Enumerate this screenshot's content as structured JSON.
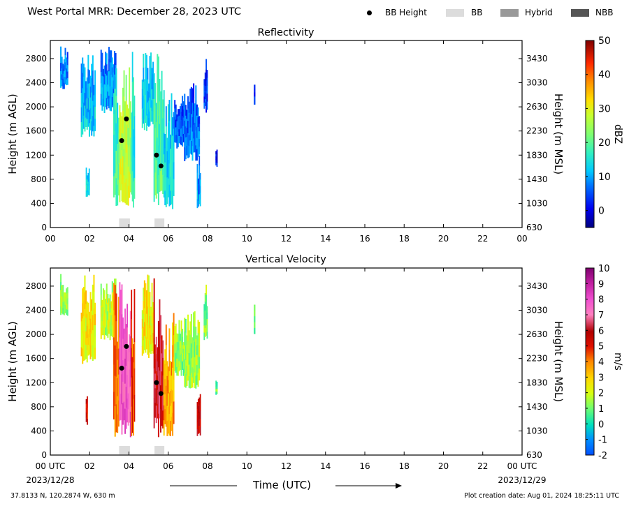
{
  "header": {
    "title": "West Portal MRR:  December 28, 2023 UTC",
    "legend": [
      {
        "label": "BB Height",
        "symbol": "dot",
        "color": "#000000"
      },
      {
        "label": "BB",
        "symbol": "box",
        "color": "#dcdcdc"
      },
      {
        "label": "Hybrid",
        "symbol": "box",
        "color": "#999999"
      },
      {
        "label": "NBB",
        "symbol": "box",
        "color": "#555555"
      }
    ]
  },
  "footer": {
    "coords": "37.8133 N, 120.2874 W, 630 m",
    "created": "Plot creation date: Aug 01, 2024 18:25:11 UTC",
    "time_label": "Time (UTC)",
    "start_label": "00 UTC",
    "start_date": "2023/12/28",
    "end_label": "00 UTC",
    "end_date": "2023/12/29"
  },
  "chart_data": [
    {
      "type": "heatmap",
      "title": "Reflectivity",
      "ylabel": "Height (m AGL)",
      "y2label": "Height (m MSL)",
      "xlim": [
        0,
        24
      ],
      "ylim": [
        0,
        3100
      ],
      "x_ticks": [
        "00",
        "02",
        "04",
        "06",
        "08",
        "10",
        "12",
        "14",
        "16",
        "18",
        "20",
        "22",
        "00"
      ],
      "y_ticks": [
        0,
        400,
        800,
        1200,
        1600,
        2000,
        2400,
        2800
      ],
      "y2_ticks": [
        630,
        1030,
        1430,
        1830,
        2230,
        2630,
        3030,
        3430
      ],
      "colorbar": {
        "label": "dBZ",
        "range": [
          -5,
          50
        ],
        "ticks": [
          0,
          10,
          20,
          30,
          40,
          50
        ]
      },
      "bright_band_height": [
        {
          "time": 3.63,
          "height": 1440
        },
        {
          "time": 3.87,
          "height": 1800
        },
        {
          "time": 5.4,
          "height": 1200
        },
        {
          "time": 5.63,
          "height": 1020
        }
      ],
      "bb_type_segments": [
        {
          "start": 3.5,
          "end": 4.05,
          "type": "BB"
        },
        {
          "start": 5.3,
          "end": 5.8,
          "type": "BB"
        }
      ],
      "echo_columns": [
        {
          "start": 0.5,
          "end": 0.9,
          "bottom": 2300,
          "top": 3000,
          "value": 8
        },
        {
          "start": 1.55,
          "end": 2.3,
          "bottom": 1500,
          "top": 3000,
          "value": 12
        },
        {
          "start": 1.8,
          "end": 2.0,
          "bottom": 500,
          "top": 1000,
          "value": 14
        },
        {
          "start": 2.55,
          "end": 3.35,
          "bottom": 1900,
          "top": 3000,
          "value": 9
        },
        {
          "start": 3.2,
          "end": 3.5,
          "bottom": 300,
          "top": 3000,
          "value": 18
        },
        {
          "start": 3.5,
          "end": 4.1,
          "bottom": 300,
          "top": 3000,
          "value": 27
        },
        {
          "start": 4.1,
          "end": 4.3,
          "bottom": 300,
          "top": 3000,
          "value": 16
        },
        {
          "start": 4.65,
          "end": 5.25,
          "bottom": 1600,
          "top": 3000,
          "value": 13
        },
        {
          "start": 5.25,
          "end": 5.75,
          "bottom": 300,
          "top": 3000,
          "value": 19
        },
        {
          "start": 5.75,
          "end": 6.3,
          "bottom": 300,
          "top": 2400,
          "value": 14
        },
        {
          "start": 6.3,
          "end": 6.8,
          "bottom": 1300,
          "top": 2300,
          "value": 5
        },
        {
          "start": 6.8,
          "end": 7.6,
          "bottom": 1100,
          "top": 2400,
          "value": 7
        },
        {
          "start": 7.45,
          "end": 7.65,
          "bottom": 300,
          "top": 1200,
          "value": 9
        },
        {
          "start": 7.8,
          "end": 8.0,
          "bottom": 1900,
          "top": 2900,
          "value": 3
        },
        {
          "start": 8.4,
          "end": 8.5,
          "bottom": 1000,
          "top": 1300,
          "value": 2
        },
        {
          "start": 10.35,
          "end": 10.42,
          "bottom": 2000,
          "top": 2500,
          "value": 4
        }
      ]
    },
    {
      "type": "heatmap",
      "title": "Vertical Velocity",
      "ylabel": "Height (m AGL)",
      "y2label": "Height (m MSL)",
      "xlim": [
        0,
        24
      ],
      "ylim": [
        0,
        3100
      ],
      "x_ticks": [
        "00 UTC",
        "02",
        "04",
        "06",
        "08",
        "10",
        "12",
        "14",
        "16",
        "18",
        "20",
        "22",
        "00 UTC"
      ],
      "y_ticks": [
        0,
        400,
        800,
        1200,
        1600,
        2000,
        2400,
        2800
      ],
      "y2_ticks": [
        630,
        1030,
        1430,
        1830,
        2230,
        2630,
        3030,
        3430
      ],
      "colorbar": {
        "label": "m/s",
        "range": [
          -2,
          10
        ],
        "ticks": [
          10,
          9,
          8,
          7,
          6,
          5,
          4,
          3,
          2,
          1,
          0,
          -1,
          -2
        ]
      },
      "bright_band_height": [
        {
          "time": 3.63,
          "height": 1440
        },
        {
          "time": 3.87,
          "height": 1800
        },
        {
          "time": 5.4,
          "height": 1200
        },
        {
          "time": 5.63,
          "height": 1020
        }
      ],
      "bb_type_segments": [
        {
          "start": 3.5,
          "end": 4.05,
          "type": "BB"
        },
        {
          "start": 5.3,
          "end": 5.8,
          "type": "BB"
        }
      ],
      "echo_columns": [
        {
          "start": 0.5,
          "end": 0.9,
          "bottom": 2300,
          "top": 3000,
          "value": 1.5
        },
        {
          "start": 1.55,
          "end": 2.3,
          "bottom": 1500,
          "top": 3000,
          "value": 2.5
        },
        {
          "start": 1.8,
          "end": 1.9,
          "bottom": 500,
          "top": 1000,
          "value": 5.5
        },
        {
          "start": 2.55,
          "end": 3.35,
          "bottom": 1900,
          "top": 3000,
          "value": 1.8
        },
        {
          "start": 3.2,
          "end": 3.5,
          "bottom": 300,
          "top": 3000,
          "value": 4
        },
        {
          "start": 3.5,
          "end": 4.1,
          "bottom": 300,
          "top": 3000,
          "value": 7.8
        },
        {
          "start": 4.1,
          "end": 4.3,
          "bottom": 300,
          "top": 3000,
          "value": 4.5
        },
        {
          "start": 4.65,
          "end": 5.25,
          "bottom": 1600,
          "top": 3000,
          "value": 2.5
        },
        {
          "start": 5.25,
          "end": 5.75,
          "bottom": 300,
          "top": 3000,
          "value": 5.8
        },
        {
          "start": 5.75,
          "end": 6.3,
          "bottom": 300,
          "top": 2400,
          "value": 3.5
        },
        {
          "start": 6.3,
          "end": 6.8,
          "bottom": 1300,
          "top": 2300,
          "value": 1.2
        },
        {
          "start": 6.8,
          "end": 7.6,
          "bottom": 1100,
          "top": 2400,
          "value": 1.5
        },
        {
          "start": 7.45,
          "end": 7.65,
          "bottom": 300,
          "top": 1200,
          "value": 5.5
        },
        {
          "start": 7.8,
          "end": 8.0,
          "bottom": 1900,
          "top": 2900,
          "value": 1.2
        },
        {
          "start": 8.4,
          "end": 8.5,
          "bottom": 1000,
          "top": 1300,
          "value": 1.0
        },
        {
          "start": 10.35,
          "end": 10.42,
          "bottom": 2000,
          "top": 2500,
          "value": 1.4
        }
      ]
    }
  ]
}
